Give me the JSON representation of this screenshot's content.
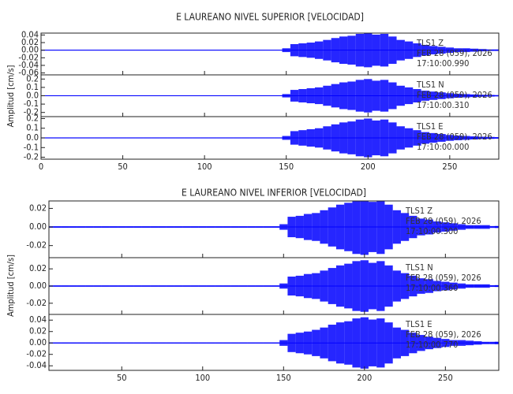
{
  "chart_data": [
    {
      "type": "seismogram",
      "title": "E LAUREANO NIVEL SUPERIOR [VELOCIDAD]",
      "y_label": "Amplitud [cm/s]",
      "xlim": [
        0,
        280
      ],
      "xticks": [
        0,
        50,
        100,
        150,
        200,
        250
      ],
      "x": [
        0,
        5,
        10,
        15,
        20,
        25,
        30,
        35,
        40,
        45,
        50,
        55,
        60,
        65,
        70,
        75,
        80,
        85,
        90,
        95,
        100,
        105,
        110,
        115,
        120,
        125,
        130,
        135,
        140,
        145,
        150,
        155,
        160,
        165,
        170,
        175,
        180,
        185,
        190,
        195,
        200,
        205,
        210,
        215,
        220,
        225,
        230,
        235,
        240,
        245,
        250,
        255,
        260,
        265,
        270,
        275,
        280
      ],
      "series": [
        {
          "name": "TLS1   Z",
          "date": "FEB 28 (059), 2026",
          "time": "17:10:00.990",
          "color": "#0000ff",
          "ylim": [
            -0.065,
            0.045
          ],
          "yticks": [
            0.04,
            0.02,
            {
              "value": 0,
              "label": "0.00"
            },
            -0.02,
            -0.04,
            -0.06
          ],
          "values": [
            0.001,
            0.001,
            0.001,
            0.001,
            0.001,
            0.001,
            0.001,
            0.001,
            0.001,
            0.001,
            0.001,
            0.001,
            0.001,
            0.001,
            0.001,
            0.001,
            0.001,
            0.001,
            0.001,
            0.001,
            0.001,
            0.001,
            0.001,
            0.001,
            0.001,
            0.001,
            0.001,
            0.001,
            0.001,
            0.001,
            0.005,
            0.016,
            0.018,
            0.02,
            0.023,
            0.027,
            0.032,
            0.036,
            0.038,
            0.043,
            0.045,
            0.041,
            0.043,
            0.036,
            0.027,
            0.023,
            0.018,
            0.014,
            0.011,
            0.009,
            0.007,
            0.005,
            0.005,
            0.004,
            0.003,
            0.002,
            0.002
          ]
        },
        {
          "name": "TLS1   N",
          "date": "FEB 28 (059), 2026",
          "time": "17:10:00.310",
          "color": "#0000ff",
          "ylim": [
            -0.25,
            0.25
          ],
          "yticks": [
            0.2,
            0.1,
            {
              "value": 0,
              "label": "0.0"
            },
            -0.1,
            -0.2
          ],
          "values": [
            0.005,
            0.005,
            0.005,
            0.005,
            0.005,
            0.005,
            0.005,
            0.005,
            0.005,
            0.005,
            0.005,
            0.005,
            0.005,
            0.005,
            0.005,
            0.005,
            0.005,
            0.005,
            0.005,
            0.005,
            0.005,
            0.005,
            0.005,
            0.005,
            0.005,
            0.005,
            0.005,
            0.005,
            0.005,
            0.005,
            0.02,
            0.07,
            0.08,
            0.09,
            0.1,
            0.12,
            0.14,
            0.16,
            0.17,
            0.19,
            0.2,
            0.18,
            0.19,
            0.16,
            0.12,
            0.1,
            0.08,
            0.06,
            0.05,
            0.04,
            0.03,
            0.024,
            0.02,
            0.016,
            0.012,
            0.01,
            0.008
          ]
        },
        {
          "name": "TLS1   E",
          "date": "FEB 28 (059), 2026",
          "time": "17:10:00.000",
          "color": "#0000ff",
          "ylim": [
            -0.22,
            0.22
          ],
          "yticks": [
            0.2,
            0.1,
            {
              "value": 0,
              "label": "0.0"
            },
            -0.1,
            -0.2
          ],
          "values": [
            0.005,
            0.005,
            0.005,
            0.005,
            0.005,
            0.005,
            0.005,
            0.005,
            0.005,
            0.005,
            0.005,
            0.005,
            0.005,
            0.005,
            0.005,
            0.005,
            0.005,
            0.005,
            0.005,
            0.005,
            0.005,
            0.005,
            0.005,
            0.005,
            0.005,
            0.005,
            0.005,
            0.005,
            0.005,
            0.005,
            0.02,
            0.07,
            0.08,
            0.09,
            0.1,
            0.12,
            0.14,
            0.16,
            0.17,
            0.19,
            0.2,
            0.18,
            0.19,
            0.16,
            0.12,
            0.1,
            0.08,
            0.06,
            0.05,
            0.04,
            0.03,
            0.024,
            0.02,
            0.016,
            0.012,
            0.01,
            0.008
          ]
        }
      ]
    },
    {
      "type": "seismogram",
      "title": "E LAUREANO NIVEL INFERIOR [VELOCIDAD]",
      "y_label": "Amplitud [cm/s]",
      "xlim": [
        5,
        283
      ],
      "xticks": [
        50,
        100,
        150,
        200,
        250
      ],
      "x": [
        5,
        10,
        15,
        20,
        25,
        30,
        35,
        40,
        45,
        50,
        55,
        60,
        65,
        70,
        75,
        80,
        85,
        90,
        95,
        100,
        105,
        110,
        115,
        120,
        125,
        130,
        135,
        140,
        145,
        150,
        155,
        160,
        165,
        170,
        175,
        180,
        185,
        190,
        195,
        200,
        205,
        210,
        215,
        220,
        225,
        230,
        235,
        240,
        245,
        250,
        255,
        260,
        265,
        270,
        275,
        280,
        283
      ],
      "series": [
        {
          "name": "TLS1   Z",
          "date": "FEB 28 (059), 2026",
          "time": "17:10:00.300",
          "color": "#0000ff",
          "ylim": [
            -0.033,
            0.028
          ],
          "yticks": [
            0.02,
            {
              "value": 0,
              "label": "0.00"
            },
            -0.02
          ],
          "values": [
            0.0008,
            0.0008,
            0.0008,
            0.0008,
            0.0008,
            0.0008,
            0.0008,
            0.0008,
            0.0008,
            0.0008,
            0.0008,
            0.0008,
            0.0008,
            0.0008,
            0.0008,
            0.0008,
            0.0008,
            0.0008,
            0.0008,
            0.0008,
            0.0008,
            0.0008,
            0.0008,
            0.0008,
            0.0008,
            0.0008,
            0.0008,
            0.0008,
            0.0008,
            0.003,
            0.011,
            0.012,
            0.014,
            0.015,
            0.018,
            0.021,
            0.024,
            0.026,
            0.029,
            0.03,
            0.027,
            0.029,
            0.024,
            0.018,
            0.015,
            0.012,
            0.009,
            0.008,
            0.006,
            0.005,
            0.004,
            0.003,
            0.002,
            0.002,
            0.002,
            0.001,
            0.001
          ]
        },
        {
          "name": "TLS1   N",
          "date": "FEB 28 (059), 2026",
          "time": "17:10:00.360",
          "color": "#0000ff",
          "ylim": [
            -0.033,
            0.033
          ],
          "yticks": [
            0.02,
            {
              "value": 0,
              "label": "0.00"
            },
            -0.02
          ],
          "values": [
            0.0008,
            0.0008,
            0.0008,
            0.0008,
            0.0008,
            0.0008,
            0.0008,
            0.0008,
            0.0008,
            0.0008,
            0.0008,
            0.0008,
            0.0008,
            0.0008,
            0.0008,
            0.0008,
            0.0008,
            0.0008,
            0.0008,
            0.0008,
            0.0008,
            0.0008,
            0.0008,
            0.0008,
            0.0008,
            0.0008,
            0.0008,
            0.0008,
            0.0008,
            0.003,
            0.011,
            0.012,
            0.014,
            0.015,
            0.018,
            0.021,
            0.024,
            0.026,
            0.029,
            0.03,
            0.027,
            0.029,
            0.024,
            0.018,
            0.015,
            0.012,
            0.009,
            0.008,
            0.006,
            0.005,
            0.004,
            0.003,
            0.002,
            0.002,
            0.002,
            0.001,
            0.001
          ]
        },
        {
          "name": "TLS1   E",
          "date": "FEB 28 (059), 2026",
          "time": "17:10:00.770",
          "color": "#0000ff",
          "ylim": [
            -0.048,
            0.05
          ],
          "yticks": [
            0.04,
            0.02,
            {
              "value": 0,
              "label": "0.00"
            },
            -0.02,
            -0.04
          ],
          "values": [
            0.001,
            0.001,
            0.001,
            0.001,
            0.001,
            0.001,
            0.001,
            0.001,
            0.001,
            0.001,
            0.001,
            0.001,
            0.001,
            0.001,
            0.001,
            0.001,
            0.001,
            0.001,
            0.001,
            0.001,
            0.001,
            0.001,
            0.001,
            0.001,
            0.001,
            0.001,
            0.001,
            0.001,
            0.001,
            0.005,
            0.016,
            0.018,
            0.02,
            0.023,
            0.027,
            0.032,
            0.036,
            0.038,
            0.043,
            0.045,
            0.041,
            0.043,
            0.036,
            0.027,
            0.023,
            0.018,
            0.014,
            0.011,
            0.009,
            0.007,
            0.005,
            0.005,
            0.004,
            0.003,
            0.002,
            0.002,
            0.002
          ]
        }
      ]
    }
  ]
}
